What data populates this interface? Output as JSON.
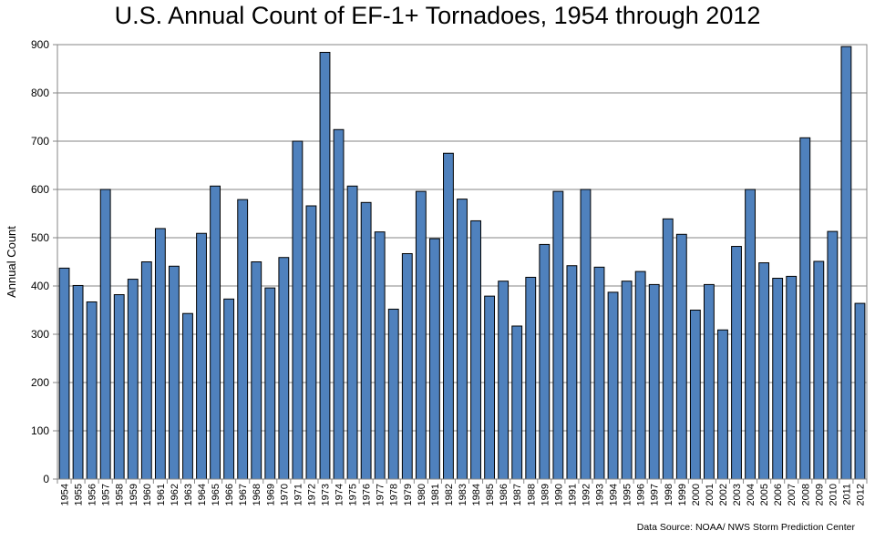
{
  "chart_data": {
    "type": "bar",
    "title": "U.S. Annual Count of EF-1+ Tornadoes, 1954 through 2012",
    "xlabel": "",
    "ylabel": "Annual Count",
    "ylim": [
      0,
      900
    ],
    "yticks": [
      0,
      100,
      200,
      300,
      400,
      500,
      600,
      700,
      800,
      900
    ],
    "grid": true,
    "legend": "none",
    "bar_color": "#4F81BD",
    "bar_outline": "#000000",
    "source": "Data Source: NOAA/ NWS Storm Prediction Center",
    "categories": [
      "1954",
      "1955",
      "1956",
      "1957",
      "1958",
      "1959",
      "1960",
      "1961",
      "1962",
      "1963",
      "1964",
      "1965",
      "1966",
      "1967",
      "1968",
      "1969",
      "1970",
      "1971",
      "1972",
      "1973",
      "1974",
      "1975",
      "1976",
      "1977",
      "1978",
      "1979",
      "1980",
      "1981",
      "1982",
      "1983",
      "1984",
      "1985",
      "1986",
      "1987",
      "1988",
      "1989",
      "1990",
      "1991",
      "1992",
      "1993",
      "1994",
      "1995",
      "1996",
      "1997",
      "1998",
      "1999",
      "2000",
      "2001",
      "2002",
      "2003",
      "2004",
      "2005",
      "2006",
      "2007",
      "2008",
      "2009",
      "2010",
      "2011",
      "2012"
    ],
    "values": [
      437,
      401,
      367,
      600,
      382,
      414,
      450,
      519,
      441,
      343,
      509,
      607,
      373,
      579,
      450,
      396,
      459,
      700,
      566,
      884,
      724,
      607,
      573,
      512,
      352,
      467,
      596,
      498,
      675,
      580,
      535,
      379,
      410,
      317,
      418,
      486,
      596,
      442,
      600,
      439,
      387,
      410,
      430,
      403,
      539,
      507,
      350,
      403,
      309,
      482,
      600,
      448,
      416,
      420,
      707,
      451,
      513,
      896,
      364
    ]
  }
}
